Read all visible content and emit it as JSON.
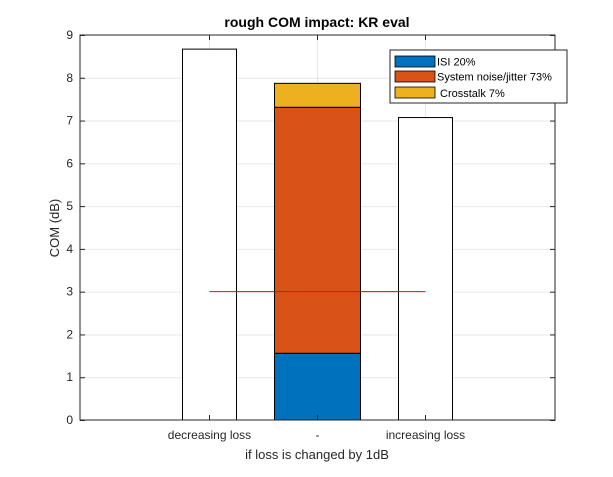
{
  "chart_data": {
    "type": "bar",
    "title": "rough COM impact: KR eval",
    "xlabel": "if loss is changed by 1dB",
    "ylabel": "COM (dB)",
    "categories": [
      "decreasing loss",
      "-",
      "increasing loss"
    ],
    "ylim": [
      0,
      9
    ],
    "yticks": [
      0,
      1,
      2,
      3,
      4,
      5,
      6,
      7,
      8,
      9
    ],
    "grid": true,
    "legend_position": "top-right",
    "plain_bars": [
      {
        "category": "decreasing loss",
        "value": 8.67
      },
      {
        "category": "increasing loss",
        "value": 7.07
      }
    ],
    "stacked_bar": {
      "category": "-",
      "series": [
        {
          "name": "ISI 20%",
          "value": 1.56,
          "color": "#0072BD"
        },
        {
          "name": "System noise/jitter 73%",
          "value": 5.75,
          "color": "#D95319"
        },
        {
          "name": "Crosstalk 7%",
          "value": 0.56,
          "color": "#EDB120"
        }
      ],
      "total": 7.87
    },
    "reference_line": {
      "y": 3,
      "x_from": "decreasing loss",
      "x_to": "increasing loss",
      "color": "#FF0000"
    }
  }
}
